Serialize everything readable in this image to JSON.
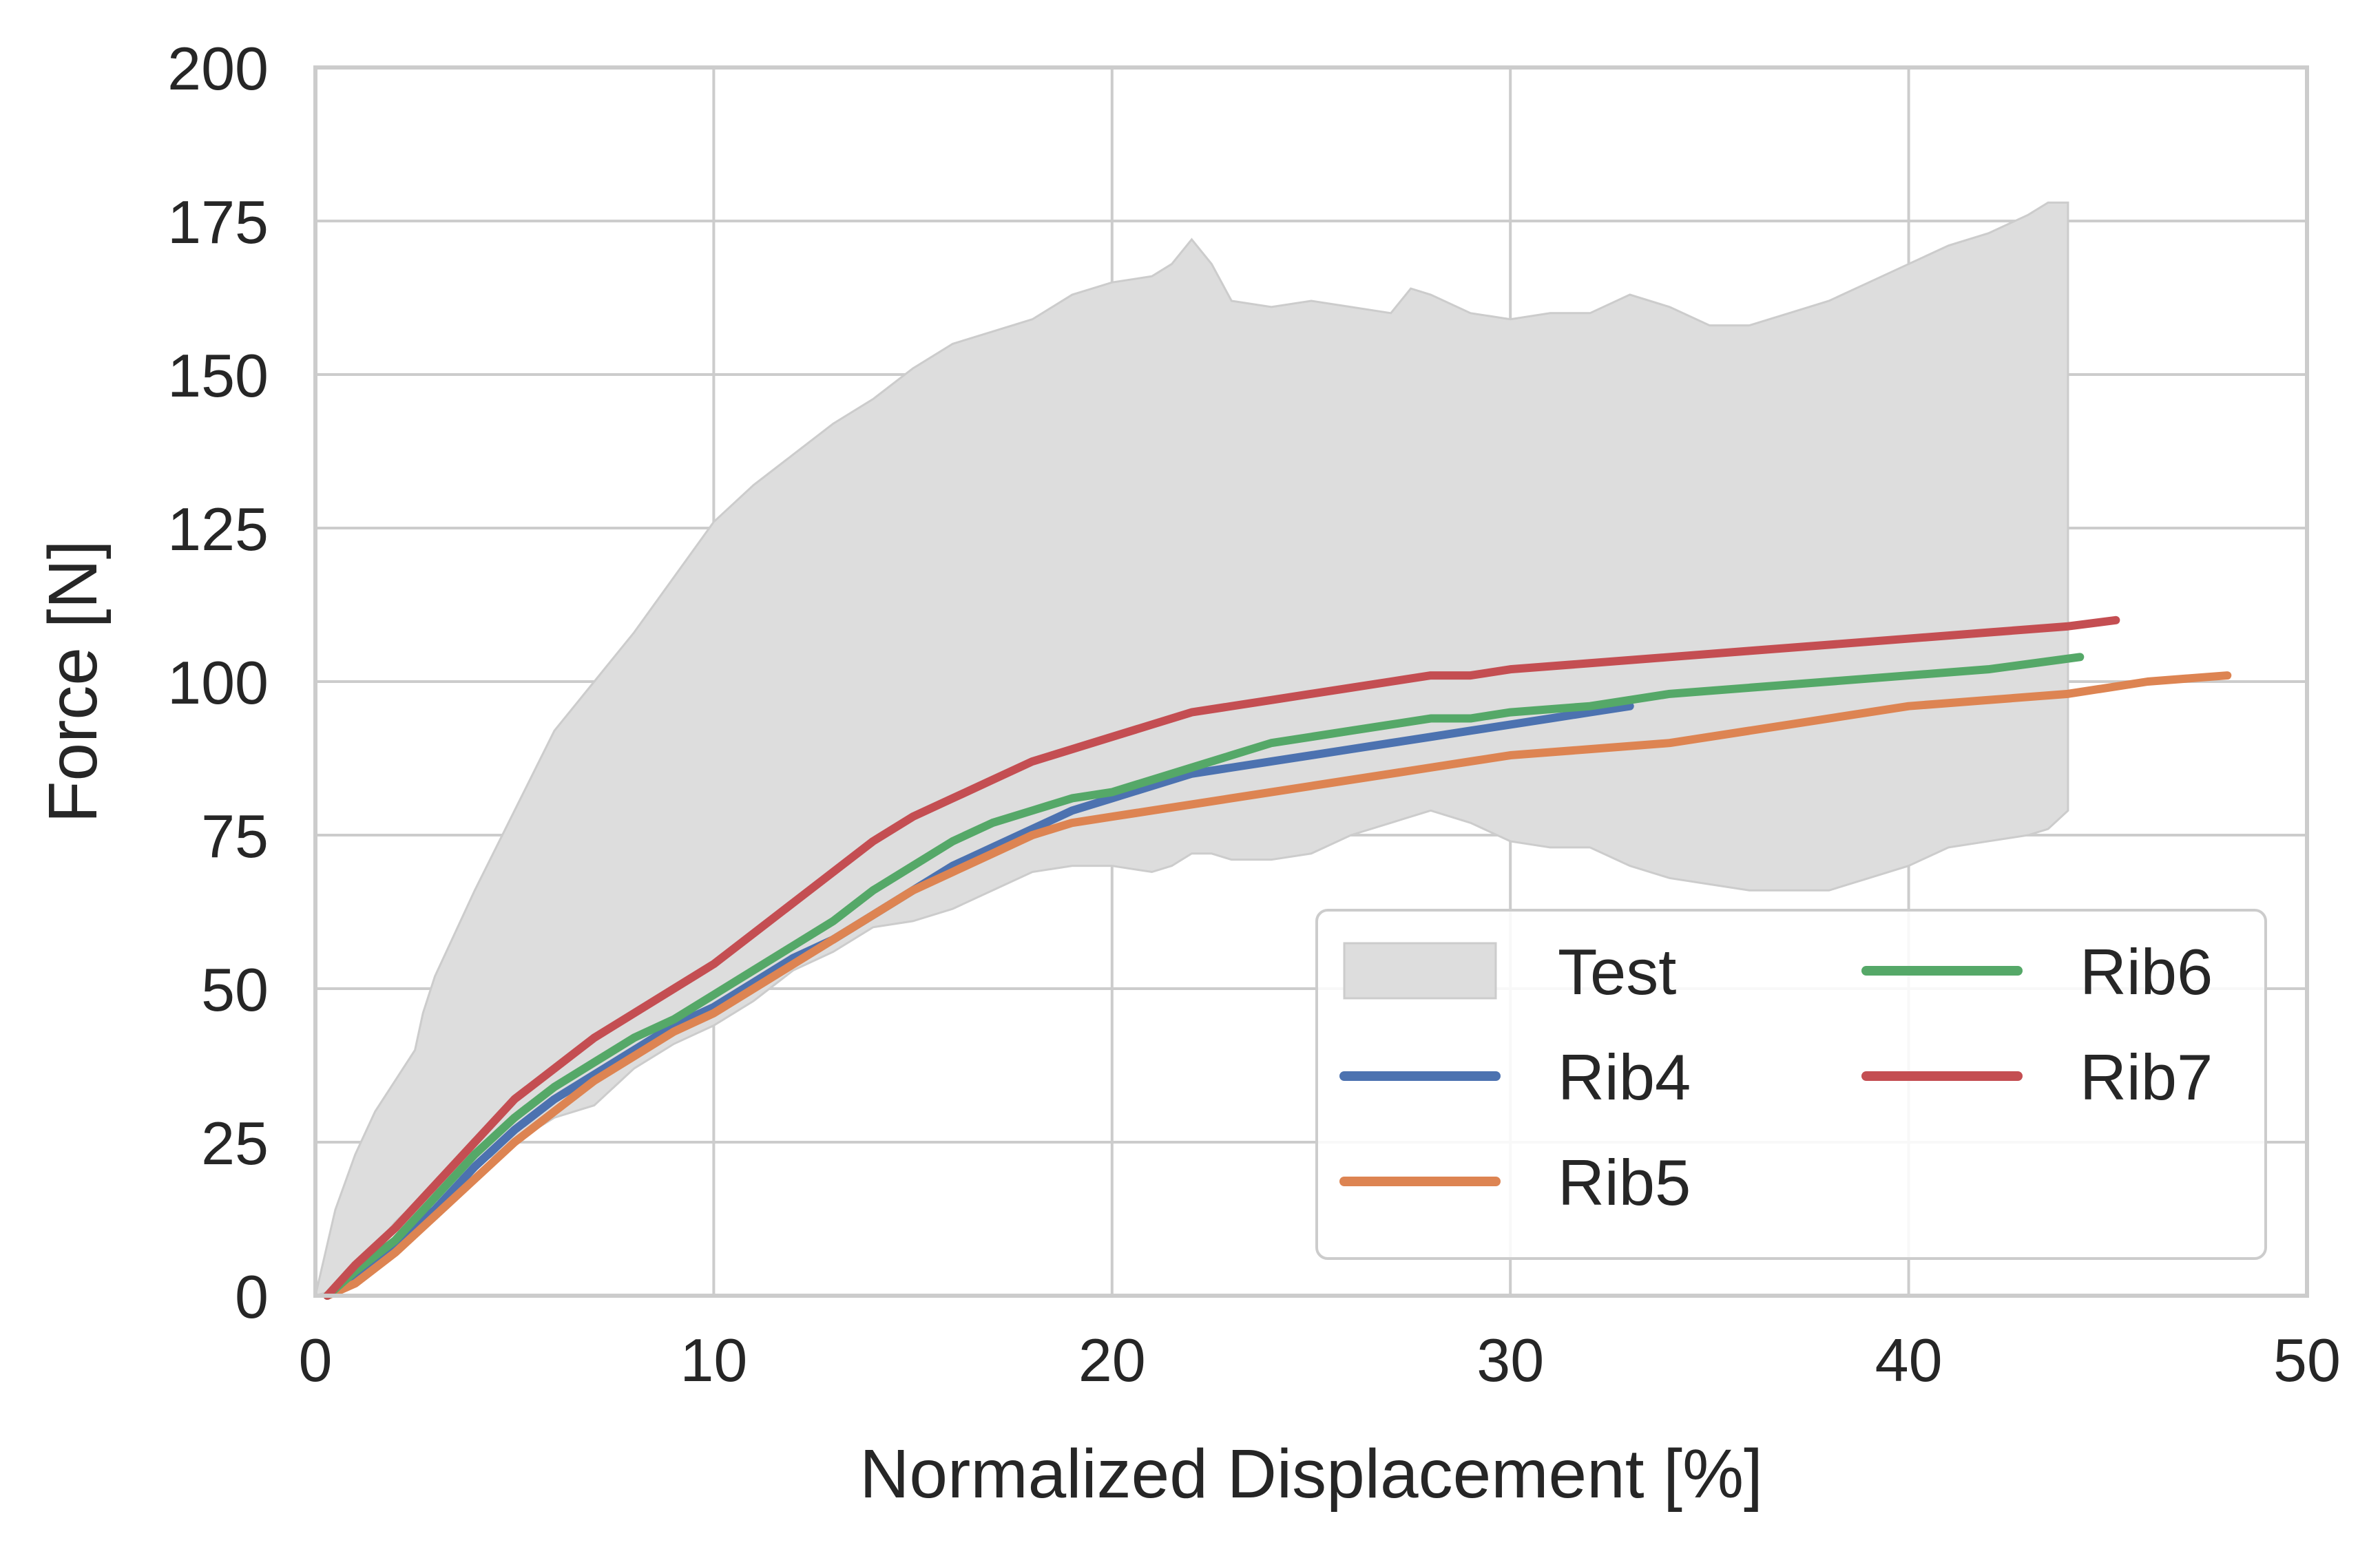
{
  "chart_data": {
    "type": "line",
    "title": "",
    "xlabel": "Normalized Displacement [%]",
    "ylabel": "Force [N]",
    "xlim": [
      0,
      50
    ],
    "ylim": [
      0,
      200
    ],
    "xticks": [
      0,
      10,
      20,
      30,
      40,
      50
    ],
    "yticks": [
      0,
      25,
      50,
      75,
      100,
      125,
      150,
      175,
      200
    ],
    "grid": true,
    "legend": {
      "placement": "lower-right",
      "columns": 2,
      "order": [
        "Test",
        "Rib4",
        "Rib5",
        "Rib6",
        "Rib7"
      ]
    },
    "band": {
      "name": "Test",
      "color": "#dddddd",
      "edge_color": "#cccccc",
      "x": [
        0,
        0.5,
        1,
        1.5,
        2,
        2.5,
        2.7,
        3,
        4,
        5,
        6,
        7,
        7.5,
        8,
        9,
        10,
        11,
        12,
        13,
        14,
        15,
        16,
        17,
        18,
        19,
        20,
        21,
        21.5,
        22,
        22.5,
        23,
        24,
        25,
        26,
        27,
        27.5,
        28,
        29,
        30,
        31,
        32,
        33,
        34,
        35,
        36,
        37,
        38,
        39,
        40,
        41,
        42,
        43,
        43.5,
        44
      ],
      "upper": [
        0,
        14,
        23,
        30,
        35,
        40,
        46,
        52,
        66,
        79,
        92,
        100,
        104,
        108,
        117,
        126,
        132,
        137,
        142,
        146,
        151,
        155,
        157,
        159,
        163,
        165,
        166,
        168,
        172,
        168,
        162,
        161,
        162,
        161,
        160,
        164,
        163,
        160,
        159,
        160,
        160,
        163,
        161,
        158,
        158,
        160,
        162,
        165,
        168,
        171,
        173,
        176,
        178,
        178
      ],
      "lower": [
        0,
        1,
        4,
        8,
        12,
        15,
        16,
        17,
        21,
        25,
        29,
        31,
        34,
        37,
        41,
        44,
        48,
        53,
        56,
        60,
        61,
        63,
        66,
        69,
        70,
        70,
        69,
        70,
        72,
        72,
        71,
        71,
        72,
        75,
        77,
        78,
        79,
        77,
        74,
        73,
        73,
        70,
        68,
        67,
        66,
        66,
        66,
        68,
        70,
        73,
        74,
        75,
        76,
        79
      ]
    },
    "series": [
      {
        "name": "Rib4",
        "color": "#4c72b0",
        "x": [
          0.3,
          1,
          2,
          3,
          4,
          5,
          6,
          7,
          8,
          9,
          10,
          11,
          12,
          13,
          14,
          15,
          16,
          17,
          18,
          19,
          20,
          21,
          22,
          23,
          24,
          25,
          26,
          27,
          28,
          29,
          30,
          31,
          32,
          33
        ],
        "y": [
          0,
          3,
          8,
          14,
          21,
          27,
          32,
          36,
          40,
          44,
          47,
          51,
          55,
          58,
          62,
          66,
          70,
          73,
          76,
          79,
          81,
          83,
          85,
          86,
          87,
          88,
          89,
          90,
          91,
          92,
          93,
          94,
          95,
          96
        ]
      },
      {
        "name": "Rib5",
        "color": "#dd8452",
        "x": [
          0.3,
          1,
          2,
          3,
          4,
          5,
          6,
          7,
          8,
          9,
          10,
          11,
          12,
          13,
          14,
          15,
          16,
          17,
          18,
          19,
          20,
          21,
          22,
          23,
          24,
          25,
          26,
          27,
          28,
          29,
          30,
          32,
          34,
          36,
          38,
          40,
          42,
          44,
          46,
          48
        ],
        "y": [
          0,
          2,
          7,
          13,
          19,
          25,
          30,
          35,
          39,
          43,
          46,
          50,
          54,
          58,
          62,
          66,
          69,
          72,
          75,
          77,
          78,
          79,
          80,
          81,
          82,
          83,
          84,
          85,
          86,
          87,
          88,
          89,
          90,
          92,
          94,
          96,
          97,
          98,
          100,
          101
        ]
      },
      {
        "name": "Rib6",
        "color": "#55a868",
        "x": [
          0.3,
          1,
          2,
          3,
          4,
          5,
          6,
          7,
          8,
          9,
          10,
          11,
          12,
          13,
          14,
          15,
          16,
          17,
          18,
          19,
          20,
          21,
          22,
          23,
          24,
          25,
          26,
          27,
          28,
          29,
          30,
          32,
          34,
          36,
          38,
          40,
          42,
          44.3
        ],
        "y": [
          0,
          4,
          9,
          16,
          23,
          29,
          34,
          38,
          42,
          45,
          49,
          53,
          57,
          61,
          66,
          70,
          74,
          77,
          79,
          81,
          82,
          84,
          86,
          88,
          90,
          91,
          92,
          93,
          94,
          94,
          95,
          96,
          98,
          99,
          100,
          101,
          102,
          104
        ]
      },
      {
        "name": "Rib7",
        "color": "#c44e52",
        "x": [
          0.3,
          1,
          2,
          3,
          4,
          5,
          6,
          7,
          8,
          9,
          10,
          11,
          12,
          13,
          14,
          15,
          16,
          17,
          18,
          19,
          20,
          21,
          22,
          23,
          24,
          25,
          26,
          27,
          28,
          29,
          30,
          32,
          34,
          36,
          38,
          40,
          42,
          44,
          45.2
        ],
        "y": [
          0,
          5,
          11,
          18,
          25,
          32,
          37,
          42,
          46,
          50,
          54,
          59,
          64,
          69,
          74,
          78,
          81,
          84,
          87,
          89,
          91,
          93,
          95,
          96,
          97,
          98,
          99,
          100,
          101,
          101,
          102,
          103,
          104,
          105,
          106,
          107,
          108,
          109,
          110
        ]
      }
    ]
  }
}
